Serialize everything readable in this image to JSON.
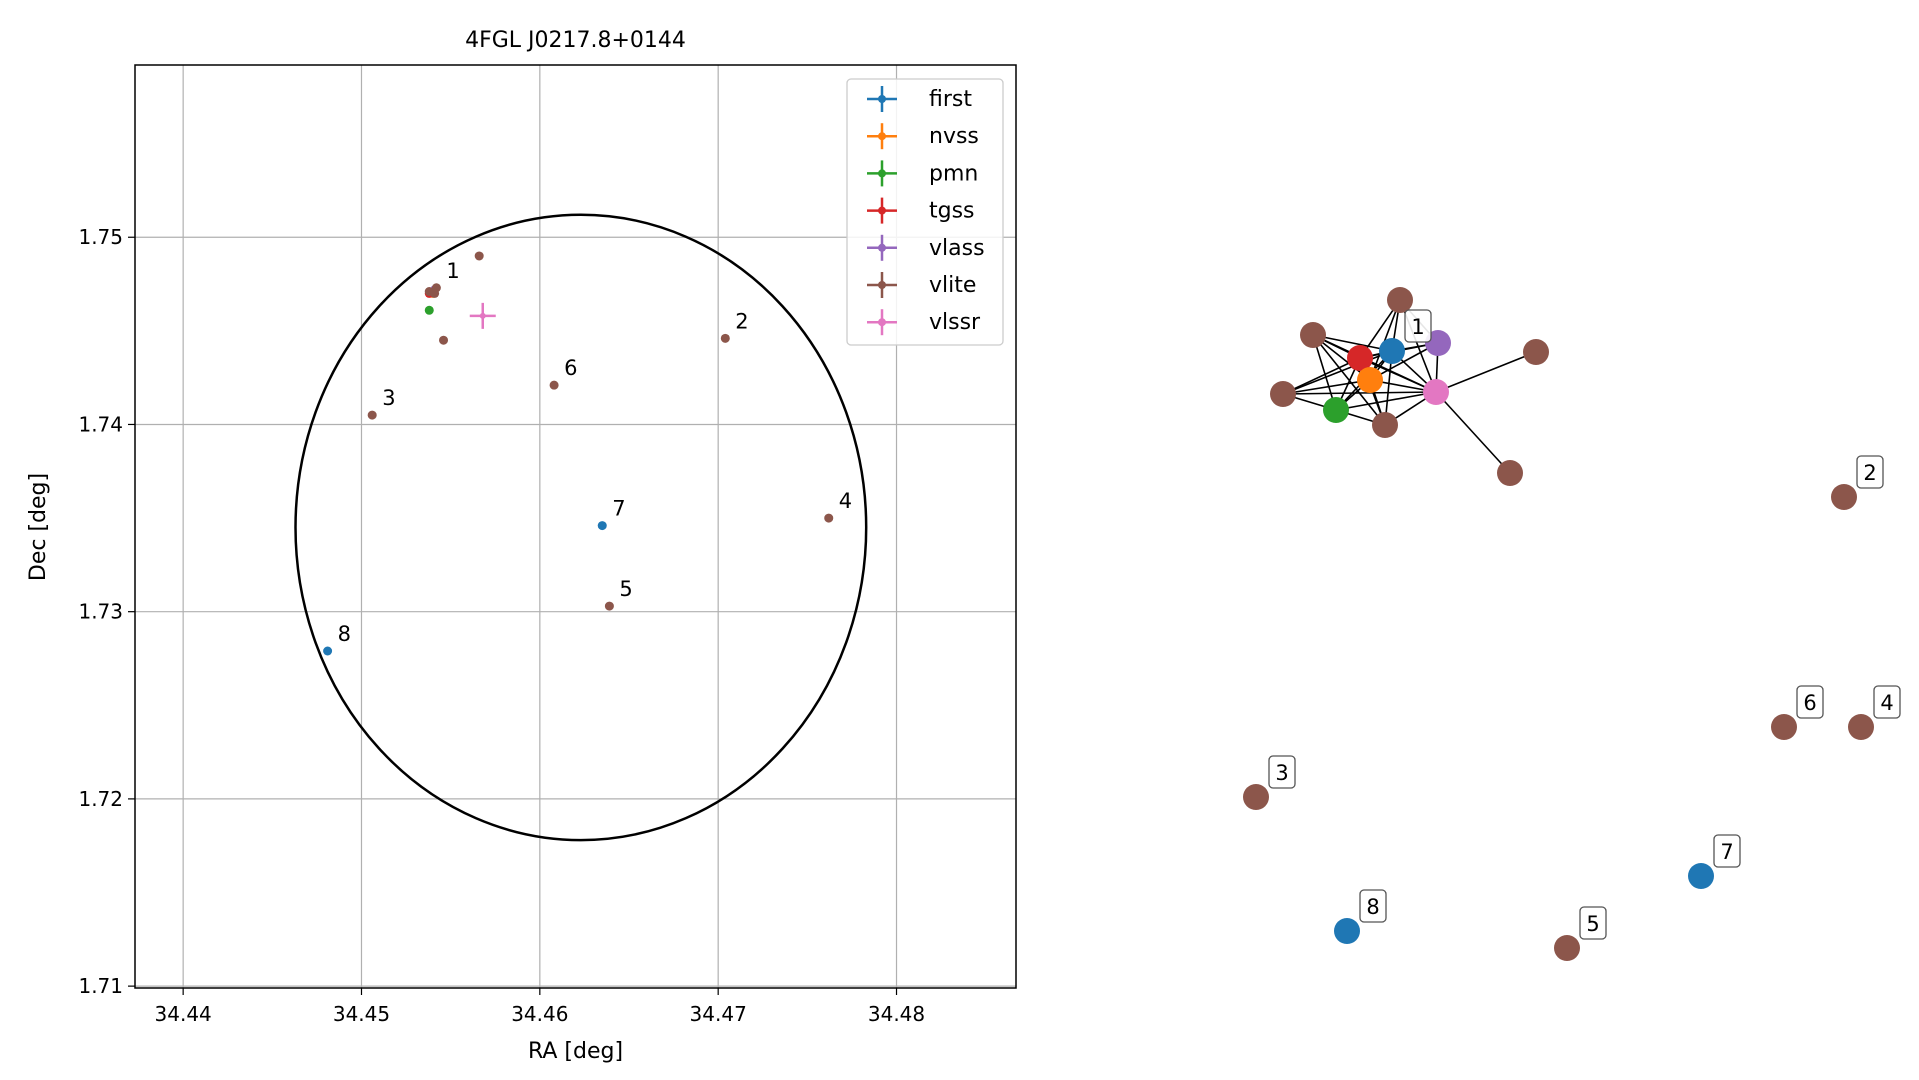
{
  "chart_data": [
    {
      "type": "scatter",
      "title": "4FGL J0217.8+0144",
      "xlabel": "RA [deg]",
      "ylabel": "Dec [deg]",
      "xlim": [
        34.4373,
        34.4867
      ],
      "ylim": [
        1.7099,
        1.7592
      ],
      "xticks": [
        34.44,
        34.45,
        34.46,
        34.47,
        34.48
      ],
      "xtick_labels": [
        "34.44",
        "34.45",
        "34.46",
        "34.47",
        "34.48"
      ],
      "yticks": [
        1.71,
        1.72,
        1.73,
        1.74,
        1.75
      ],
      "ytick_labels": [
        "1.71",
        "1.72",
        "1.73",
        "1.74",
        "1.75"
      ],
      "grid": true,
      "legend_position": "top-right",
      "ellipse": {
        "center": [
          34.4623,
          1.7345
        ],
        "ra_radius": 0.016,
        "dec_radius": 0.0167,
        "color": "#000000"
      },
      "series": [
        {
          "name": "first",
          "color": "#1f77b4",
          "points": [
            {
              "x": 34.4635,
              "y": 1.7346,
              "label": "7"
            },
            {
              "x": 34.4481,
              "y": 1.7279,
              "label": "8"
            }
          ]
        },
        {
          "name": "nvss",
          "color": "#ff7f0e",
          "points": [
            {
              "x": 34.454,
              "y": 1.747
            }
          ]
        },
        {
          "name": "pmn",
          "color": "#2ca02c",
          "points": [
            {
              "x": 34.4538,
              "y": 1.7461
            }
          ]
        },
        {
          "name": "tgss",
          "color": "#d62728",
          "points": [
            {
              "x": 34.4538,
              "y": 1.747
            }
          ]
        },
        {
          "name": "vlass",
          "color": "#9467bd",
          "points": [
            {
              "x": 34.4541,
              "y": 1.7472
            }
          ]
        },
        {
          "name": "vlite",
          "color": "#8c564b",
          "points": [
            {
              "x": 34.4542,
              "y": 1.7473,
              "label": "1"
            },
            {
              "x": 34.4704,
              "y": 1.7446,
              "label": "2"
            },
            {
              "x": 34.4506,
              "y": 1.7405,
              "label": "3"
            },
            {
              "x": 34.4762,
              "y": 1.735,
              "label": "4"
            },
            {
              "x": 34.4639,
              "y": 1.7303,
              "label": "5"
            },
            {
              "x": 34.4608,
              "y": 1.7421,
              "label": "6"
            },
            {
              "x": 34.4566,
              "y": 1.749
            },
            {
              "x": 34.4546,
              "y": 1.7445
            },
            {
              "x": 34.4538,
              "y": 1.7471
            },
            {
              "x": 34.4541,
              "y": 1.747
            }
          ]
        },
        {
          "name": "vlssr",
          "color": "#e377c2",
          "points": [
            {
              "x": 34.4568,
              "y": 1.7458
            }
          ]
        }
      ]
    },
    {
      "type": "network-graph",
      "nodes": [
        {
          "id": "n1",
          "color": "#1f77b4",
          "label": "1"
        },
        {
          "id": "n2",
          "color": "#9467bd"
        },
        {
          "id": "n3",
          "color": "#d62728"
        },
        {
          "id": "n4",
          "color": "#ff7f0e"
        },
        {
          "id": "n5",
          "color": "#e377c2"
        },
        {
          "id": "n6",
          "color": "#2ca02c"
        },
        {
          "id": "n7",
          "color": "#8c564b"
        },
        {
          "id": "n8",
          "color": "#8c564b"
        },
        {
          "id": "n9",
          "color": "#8c564b"
        },
        {
          "id": "n10",
          "color": "#8c564b"
        },
        {
          "id": "n11",
          "color": "#8c564b"
        },
        {
          "id": "n12",
          "color": "#8c564b"
        },
        {
          "id": "s2",
          "color": "#8c564b",
          "label": "2"
        },
        {
          "id": "s3",
          "color": "#8c564b",
          "label": "3"
        },
        {
          "id": "s4",
          "color": "#8c564b",
          "label": "4"
        },
        {
          "id": "s5",
          "color": "#8c564b",
          "label": "5"
        },
        {
          "id": "s6",
          "color": "#8c564b",
          "label": "6"
        },
        {
          "id": "s7",
          "color": "#1f77b4",
          "label": "7"
        },
        {
          "id": "s8",
          "color": "#1f77b4",
          "label": "8"
        }
      ],
      "edges": [
        [
          "n7",
          "n1"
        ],
        [
          "n7",
          "n3"
        ],
        [
          "n7",
          "n4"
        ],
        [
          "n7",
          "n5"
        ],
        [
          "n7",
          "n2"
        ],
        [
          "n8",
          "n3"
        ],
        [
          "n8",
          "n1"
        ],
        [
          "n8",
          "n4"
        ],
        [
          "n8",
          "n5"
        ],
        [
          "n8",
          "n6"
        ],
        [
          "n8",
          "n12"
        ],
        [
          "n9",
          "n3"
        ],
        [
          "n9",
          "n4"
        ],
        [
          "n9",
          "n6"
        ],
        [
          "n9",
          "n5"
        ],
        [
          "n9",
          "n1"
        ],
        [
          "n12",
          "n3"
        ],
        [
          "n12",
          "n1"
        ],
        [
          "n12",
          "n4"
        ],
        [
          "n12",
          "n5"
        ],
        [
          "n12",
          "n6"
        ],
        [
          "n3",
          "n1"
        ],
        [
          "n3",
          "n4"
        ],
        [
          "n3",
          "n5"
        ],
        [
          "n3",
          "n6"
        ],
        [
          "n3",
          "n2"
        ],
        [
          "n1",
          "n4"
        ],
        [
          "n1",
          "n5"
        ],
        [
          "n1",
          "n2"
        ],
        [
          "n1",
          "n6"
        ],
        [
          "n4",
          "n5"
        ],
        [
          "n4",
          "n6"
        ],
        [
          "n4",
          "n2"
        ],
        [
          "n6",
          "n5"
        ],
        [
          "n2",
          "n5"
        ],
        [
          "n10",
          "n5"
        ],
        [
          "n11",
          "n5"
        ]
      ]
    }
  ]
}
